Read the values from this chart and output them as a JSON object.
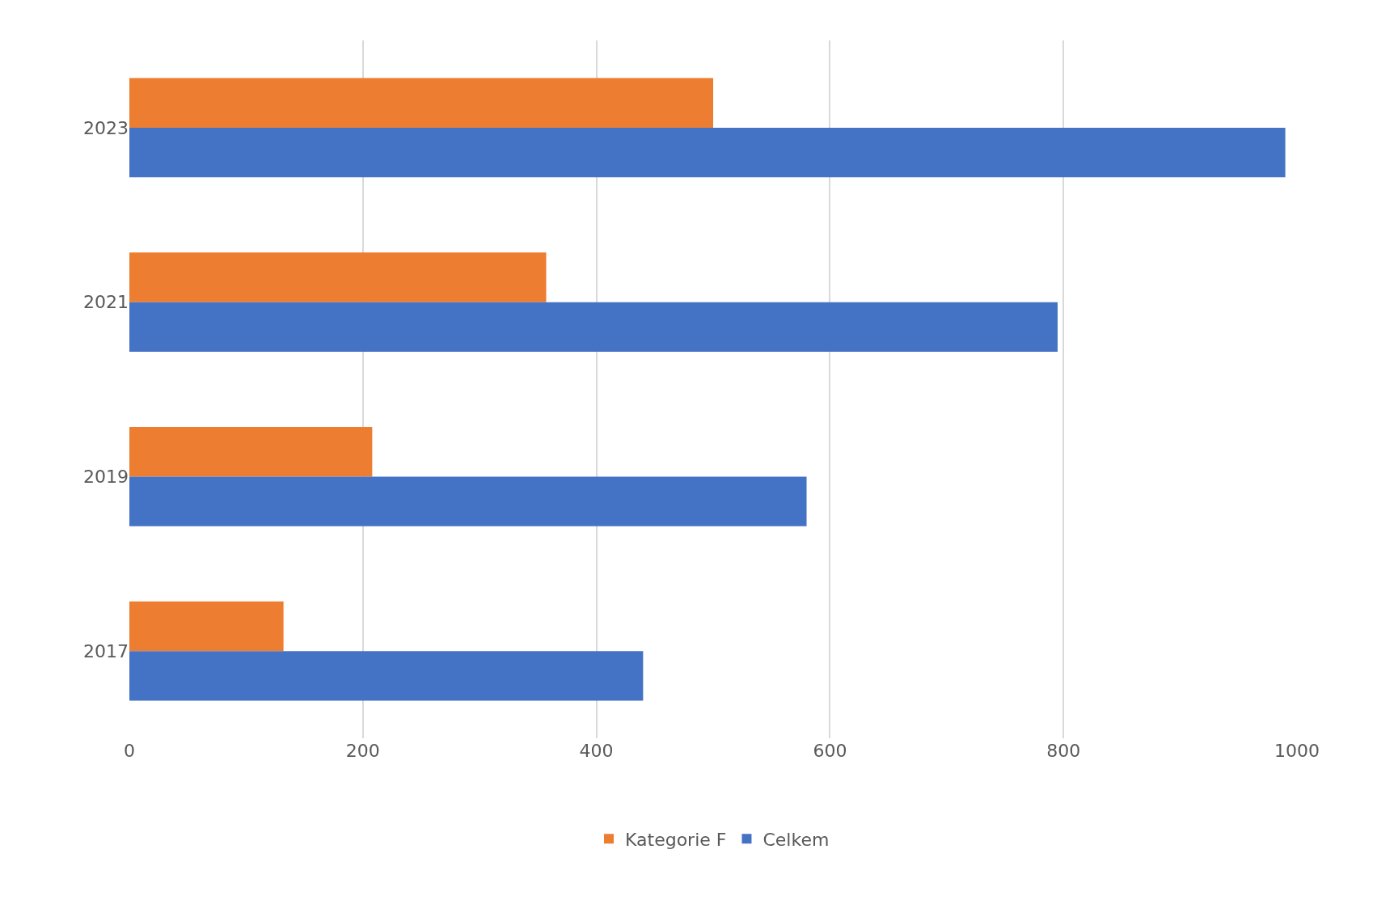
{
  "chart_data": {
    "type": "bar",
    "orientation": "horizontal",
    "categories": [
      "2023",
      "2021",
      "2019",
      "2017"
    ],
    "series": [
      {
        "name": "Kategorie F",
        "color": "#ed7d31",
        "values": [
          500,
          357,
          208,
          132
        ]
      },
      {
        "name": "Celkem",
        "color": "#4472c4",
        "values": [
          990,
          795,
          580,
          440
        ]
      }
    ],
    "xlim": [
      0,
      1000
    ],
    "xticks": [
      0,
      200,
      400,
      600,
      800,
      1000
    ],
    "grid": "x",
    "legend": "bottom"
  }
}
